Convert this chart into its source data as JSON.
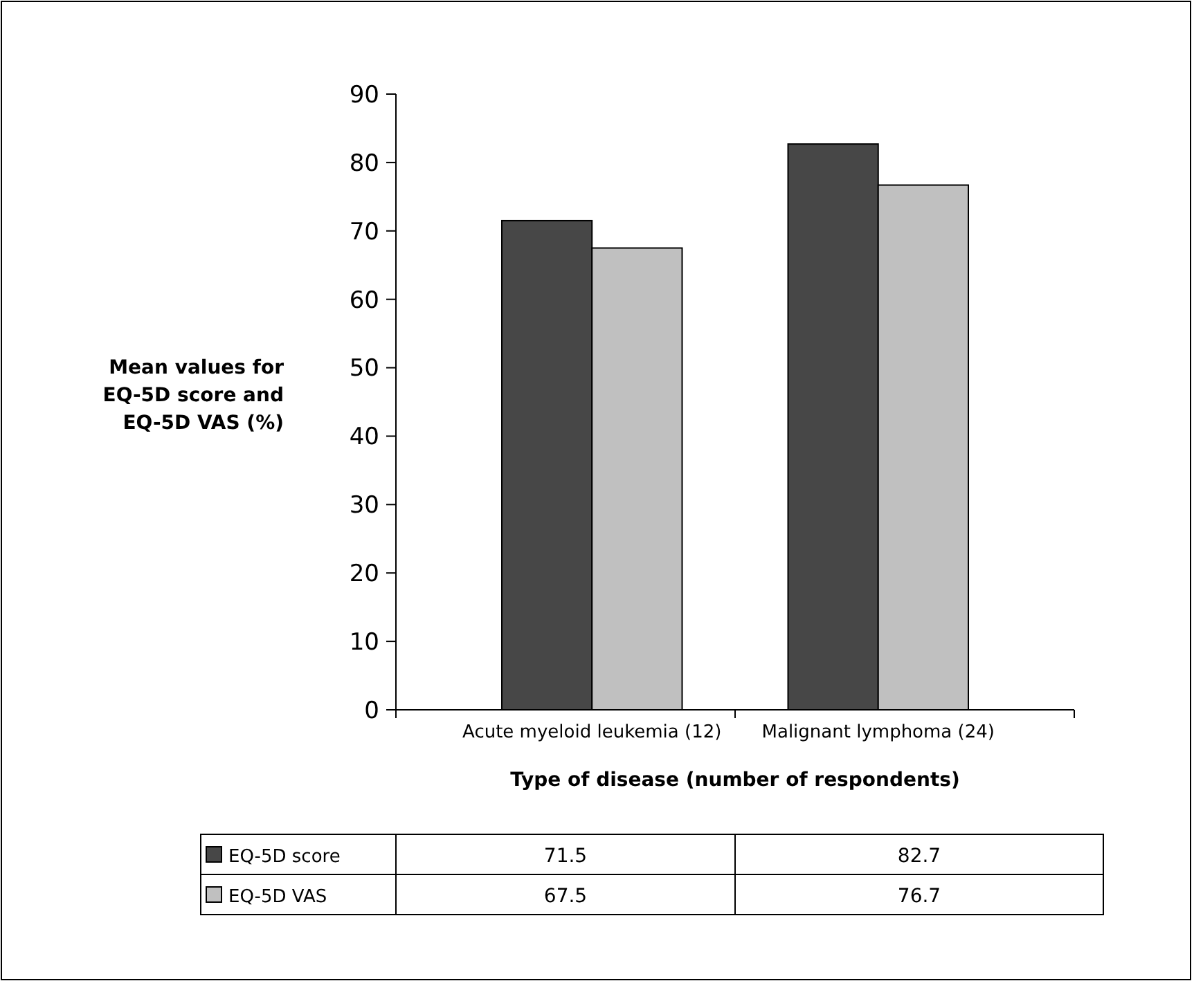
{
  "chart_data": {
    "type": "bar",
    "xlabel": "Type of disease (number of respondents)",
    "ylabel": "Mean values for EQ-5D score and EQ-5D VAS (%)",
    "categories": [
      "Acute myeloid leukemia (12)",
      "Malignant lymphoma (24)"
    ],
    "series": [
      {
        "name": "EQ-5D score",
        "color": "#474747",
        "values": [
          71.5,
          82.7
        ]
      },
      {
        "name": "EQ-5D VAS",
        "color": "#c0c0c0",
        "values": [
          67.5,
          76.7
        ]
      }
    ],
    "ylim": [
      0,
      90
    ],
    "yticks": [
      0,
      10,
      20,
      30,
      40,
      50,
      60,
      70,
      80,
      90
    ],
    "grid": false,
    "legend": "bottom",
    "data_labels": true
  }
}
